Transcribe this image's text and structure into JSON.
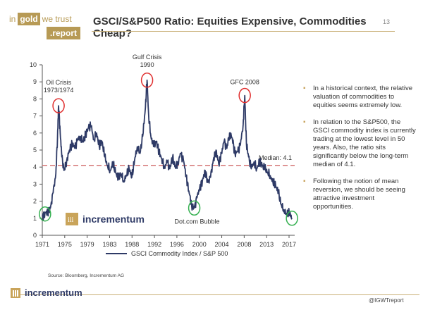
{
  "header": {
    "logo_in": "in",
    "logo_gold": "gold",
    "logo_we_trust": "we trust",
    "logo_report": ".report",
    "title": "GSCI/S&P500 Ratio: Equities Expensive, Commodities Cheap?",
    "page_number": "13"
  },
  "watermark": {
    "brand": "incrementum"
  },
  "bullets": [
    "In a historical context, the relative valuation of commodities to equities seems extremely low.",
    "In relation to the S&P500, the GSCI commodity index is currently trading at the lowest level in 50 years. Also, the ratio sits significantly below the long-term median of 4.1.",
    "Following the notion of mean reversion, we should be seeing attractive investment opportunities."
  ],
  "footer": {
    "source": "Source: Bloomberg, Incrementum AG",
    "brand": "incrementum",
    "handle": "@IGWTreport"
  },
  "colors": {
    "gold": "#b79a55",
    "series": "#2e3a66",
    "median": "#d06a6a",
    "highlight_red": "#e03030",
    "highlight_green": "#35b050"
  },
  "chart_data": {
    "type": "line",
    "title": "",
    "xlabel": "",
    "ylabel": "",
    "ylim": [
      0,
      10
    ],
    "xlim": [
      1971,
      2017.5
    ],
    "y_ticks": [
      0,
      1,
      2,
      3,
      4,
      5,
      6,
      7,
      8,
      9,
      10
    ],
    "x_tick_labels": [
      "1971",
      "1975",
      "1979",
      "1983",
      "1988",
      "1992",
      "1996",
      "2000",
      "2004",
      "2008",
      "2013",
      "2017"
    ],
    "grid": false,
    "legend_position": "bottom",
    "series": [
      {
        "name": "GSCI Commodity Index / S&P 500",
        "points": [
          [
            1971,
            1.1
          ],
          [
            1971.5,
            1.3
          ],
          [
            1972,
            1.4
          ],
          [
            1972.5,
            1.6
          ],
          [
            1973,
            2.5
          ],
          [
            1973.5,
            3.6
          ],
          [
            1973.8,
            5.8
          ],
          [
            1974,
            7.6
          ],
          [
            1974.3,
            6.0
          ],
          [
            1974.6,
            4.6
          ],
          [
            1975,
            3.8
          ],
          [
            1975.5,
            4.4
          ],
          [
            1976,
            5.0
          ],
          [
            1976.5,
            5.4
          ],
          [
            1977,
            5.1
          ],
          [
            1977.5,
            5.6
          ],
          [
            1978,
            5.8
          ],
          [
            1978.5,
            5.5
          ],
          [
            1979,
            5.9
          ],
          [
            1979.5,
            6.3
          ],
          [
            1980,
            6.4
          ],
          [
            1980.5,
            5.6
          ],
          [
            1981,
            6.0
          ],
          [
            1981.5,
            5.2
          ],
          [
            1982,
            5.5
          ],
          [
            1982.5,
            4.6
          ],
          [
            1983,
            4.1
          ],
          [
            1983.5,
            3.8
          ],
          [
            1984,
            4.2
          ],
          [
            1984.5,
            3.7
          ],
          [
            1985,
            3.3
          ],
          [
            1985.5,
            3.6
          ],
          [
            1986,
            3.2
          ],
          [
            1986.5,
            3.5
          ],
          [
            1987,
            3.9
          ],
          [
            1987.5,
            3.4
          ],
          [
            1988,
            4.4
          ],
          [
            1988.5,
            5.2
          ],
          [
            1989,
            4.8
          ],
          [
            1989.5,
            5.8
          ],
          [
            1990,
            7.5
          ],
          [
            1990.3,
            9.1
          ],
          [
            1990.6,
            7.0
          ],
          [
            1991,
            5.8
          ],
          [
            1991.5,
            5.2
          ],
          [
            1992,
            5.5
          ],
          [
            1992.5,
            4.9
          ],
          [
            1993,
            4.5
          ],
          [
            1993.5,
            4.0
          ],
          [
            1994,
            4.3
          ],
          [
            1994.5,
            3.9
          ],
          [
            1995,
            4.6
          ],
          [
            1995.5,
            4.0
          ],
          [
            1996,
            4.3
          ],
          [
            1996.5,
            4.8
          ],
          [
            1997,
            4.4
          ],
          [
            1997.5,
            3.5
          ],
          [
            1998,
            2.6
          ],
          [
            1998.5,
            1.8
          ],
          [
            1999,
            1.6
          ],
          [
            1999.5,
            2.2
          ],
          [
            2000,
            2.8
          ],
          [
            2000.5,
            3.2
          ],
          [
            2001,
            3.8
          ],
          [
            2001.5,
            3.1
          ],
          [
            2002,
            3.4
          ],
          [
            2002.5,
            4.4
          ],
          [
            2003,
            5.0
          ],
          [
            2003.5,
            4.2
          ],
          [
            2004,
            4.8
          ],
          [
            2004.5,
            5.5
          ],
          [
            2005,
            5.1
          ],
          [
            2005.5,
            6.0
          ],
          [
            2006,
            5.7
          ],
          [
            2006.5,
            4.8
          ],
          [
            2007,
            4.9
          ],
          [
            2007.5,
            5.3
          ],
          [
            2008,
            6.5
          ],
          [
            2008.3,
            8.2
          ],
          [
            2008.6,
            5.4
          ],
          [
            2009,
            4.6
          ],
          [
            2009.5,
            3.9
          ],
          [
            2010,
            4.3
          ],
          [
            2010.5,
            3.9
          ],
          [
            2011,
            4.3
          ],
          [
            2011.5,
            4.1
          ],
          [
            2012,
            3.9
          ],
          [
            2012.5,
            3.7
          ],
          [
            2013,
            3.5
          ],
          [
            2013.5,
            3.1
          ],
          [
            2014,
            2.9
          ],
          [
            2014.5,
            2.5
          ],
          [
            2015,
            1.8
          ],
          [
            2015.5,
            1.5
          ],
          [
            2016,
            1.2
          ],
          [
            2016.5,
            1.3
          ],
          [
            2017,
            1.0
          ]
        ]
      }
    ],
    "median": {
      "value": 4.1,
      "label": "Median: 4.1"
    },
    "annotations": [
      {
        "text": "Oil Crisis",
        "text2": "1973/1974",
        "x": 1974,
        "y": 7.6,
        "marker": "red"
      },
      {
        "text": "Gulf Crisis",
        "text2": "1990",
        "x": 1990.3,
        "y": 9.1,
        "marker": "red"
      },
      {
        "text": "GFC 2008",
        "text2": "",
        "x": 2008.3,
        "y": 8.2,
        "marker": "red"
      },
      {
        "text": "Dot.com Bubble",
        "text2": "",
        "x": 1999,
        "y": 1.6,
        "marker": "green"
      },
      {
        "text": "",
        "text2": "",
        "x": 1971.5,
        "y": 1.25,
        "marker": "green"
      },
      {
        "text": "",
        "text2": "",
        "x": 2017,
        "y": 1.0,
        "marker": "green"
      }
    ]
  }
}
